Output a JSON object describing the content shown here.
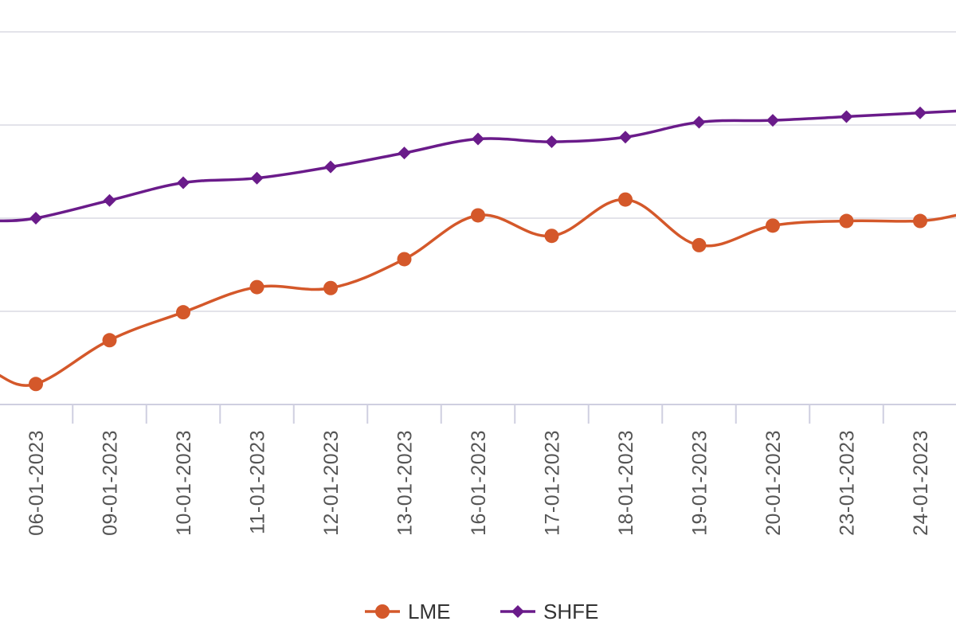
{
  "chart_data": {
    "type": "line",
    "categories": [
      "06-01-2023",
      "09-01-2023",
      "10-01-2023",
      "11-01-2023",
      "12-01-2023",
      "13-01-2023",
      "16-01-2023",
      "17-01-2023",
      "18-01-2023",
      "19-01-2023",
      "20-01-2023",
      "23-01-2023",
      "24-01-2023"
    ],
    "ylim": [
      0,
      4
    ],
    "grid": true,
    "legend_position": "bottom-center",
    "series": [
      {
        "name": "LME",
        "color": "#d4582a",
        "marker": "circle",
        "lead_in": 0.33,
        "values": [
          0.22,
          0.69,
          0.99,
          1.26,
          1.25,
          1.56,
          2.03,
          1.81,
          2.2,
          1.71,
          1.92,
          1.97,
          1.97
        ],
        "trail_out": 2.03
      },
      {
        "name": "SHFE",
        "color": "#6a1b8a",
        "marker": "diamond",
        "lead_in": 1.97,
        "values": [
          2.0,
          2.19,
          2.38,
          2.43,
          2.55,
          2.7,
          2.85,
          2.82,
          2.87,
          3.03,
          3.05,
          3.09,
          3.13
        ],
        "trail_out": 3.15
      }
    ]
  }
}
